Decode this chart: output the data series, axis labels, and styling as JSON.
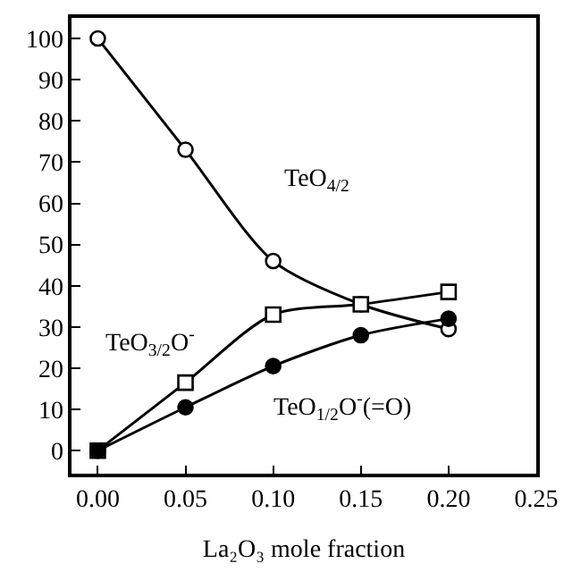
{
  "chart_data": {
    "type": "line",
    "xlabel": "La₂O₃ mole fraction",
    "x": [
      0.0,
      0.05,
      0.1,
      0.15,
      0.2
    ],
    "series": [
      {
        "name": "TeO$_{4/2}$",
        "color": "#000000",
        "marker": "circle",
        "colors": [
          "#ffffff",
          "#ffffff",
          "#ffffff",
          "#ffffff",
          "#ffffff"
        ],
        "values": [
          100,
          73,
          46,
          35.5,
          29.5
        ]
      },
      {
        "name": "TeO$_{3/2}$O$^{-}$",
        "color": "#000000",
        "marker": "square",
        "colors": [
          "#ffffff",
          "#ffffff",
          "#ffffff",
          "#ffffff",
          "#ffffff"
        ],
        "values": [
          0,
          16.5,
          33,
          35.5,
          38.5
        ]
      },
      {
        "name": "TeO$_{1/2}$O$^{-}$(=O)",
        "color": "#000000",
        "marker": "circle",
        "values": [
          0,
          10.5,
          20.5,
          28,
          32
        ]
      }
    ],
    "xlim": [
      -0.015,
      0.25
    ],
    "xticks": [
      {
        "value": 0,
        "label": "0.00"
      },
      0.05,
      {
        "value": 0.1,
        "label": "0.10"
      },
      0.15,
      {
        "value": 0.2,
        "label": "0.20"
      },
      0.25
    ],
    "ylim": [
      -5.6,
      105
    ],
    "yticks": [
      0,
      10,
      20,
      30,
      40,
      50,
      60,
      70,
      80,
      90,
      100
    ],
    "legend": false
  }
}
